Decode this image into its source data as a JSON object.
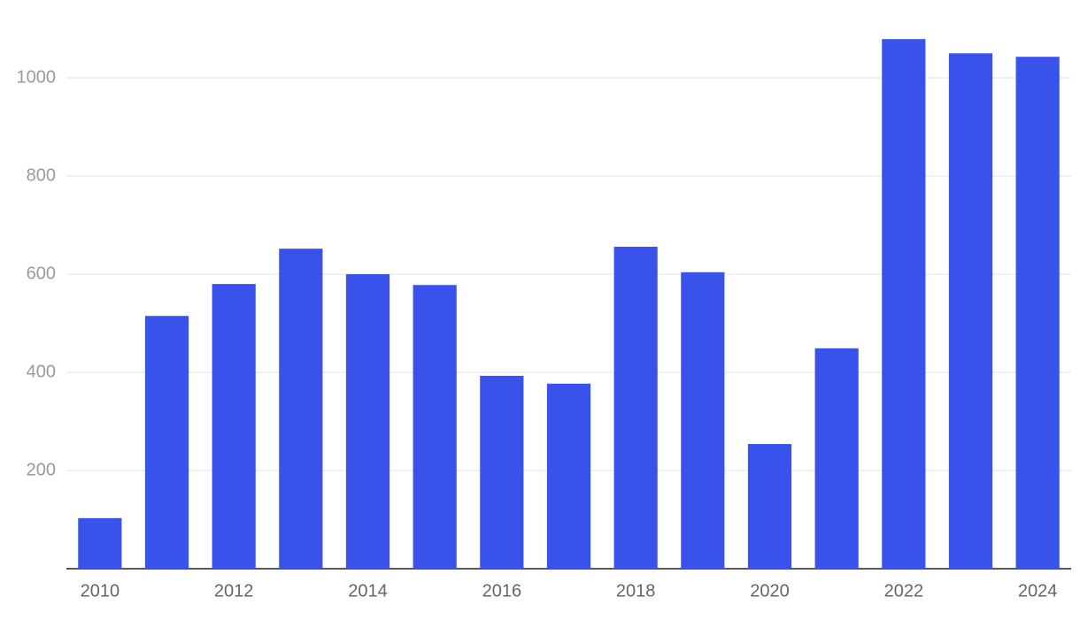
{
  "chart_data": {
    "type": "bar",
    "categories": [
      "2010",
      null,
      "2012",
      null,
      "2014",
      null,
      "2016",
      null,
      "2018",
      null,
      "2020",
      null,
      "2022",
      null,
      "2024"
    ],
    "values": [
      103,
      515,
      580,
      652,
      600,
      578,
      393,
      377,
      656,
      604,
      254,
      449,
      1079,
      1050,
      1043
    ],
    "color": "#3a52ec",
    "ylim": [
      0,
      1110
    ],
    "yticks": [
      200,
      400,
      600,
      800,
      1000
    ],
    "grid": true
  }
}
